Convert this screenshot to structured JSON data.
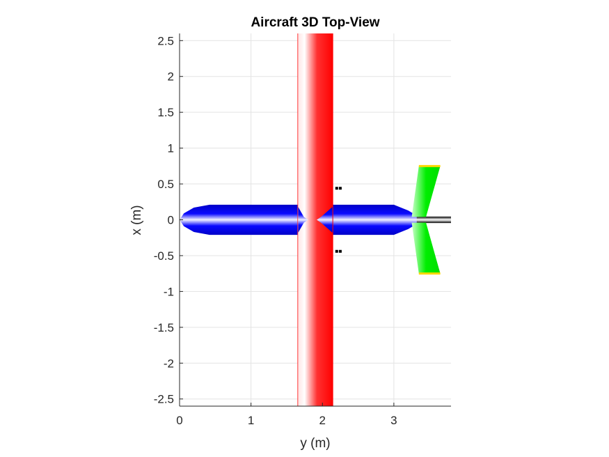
{
  "chart_data": {
    "type": "other",
    "title": "Aircraft 3D Top-View",
    "xlabel": "y (m)",
    "ylabel": "x (m)",
    "xlim": [
      0,
      3.8
    ],
    "ylim": [
      -2.6,
      2.6
    ],
    "xticks": [
      0,
      1,
      2,
      3
    ],
    "xtick_labels": [
      "0",
      "1",
      "2",
      "3"
    ],
    "yticks": [
      2.5,
      2,
      1.5,
      1,
      0.5,
      0,
      -0.5,
      -1,
      -1.5,
      -2,
      -2.5
    ],
    "ytick_labels": [
      "2.5",
      "2",
      "1.5",
      "1",
      "0.5",
      "0",
      "-0.5",
      "-1",
      "-1.5",
      "-2",
      "-2.5"
    ],
    "grid": true,
    "components": {
      "fuselage": {
        "color": "#0000ff",
        "y_range": [
          0,
          3.2
        ],
        "half_width_x": 0.21
      },
      "wing": {
        "color": "#ff0000",
        "y_range": [
          1.65,
          2.15
        ]
      },
      "horizontal_tail": {
        "color": "#00ee00",
        "tip_color": "#ffd700",
        "y_root": [
          3.25,
          3.45
        ],
        "y_tip": [
          3.35,
          3.65
        ],
        "x_span": 0.75
      },
      "tail_boom": {
        "color": "#000000",
        "y_range": [
          3.3,
          3.8
        ]
      }
    }
  }
}
